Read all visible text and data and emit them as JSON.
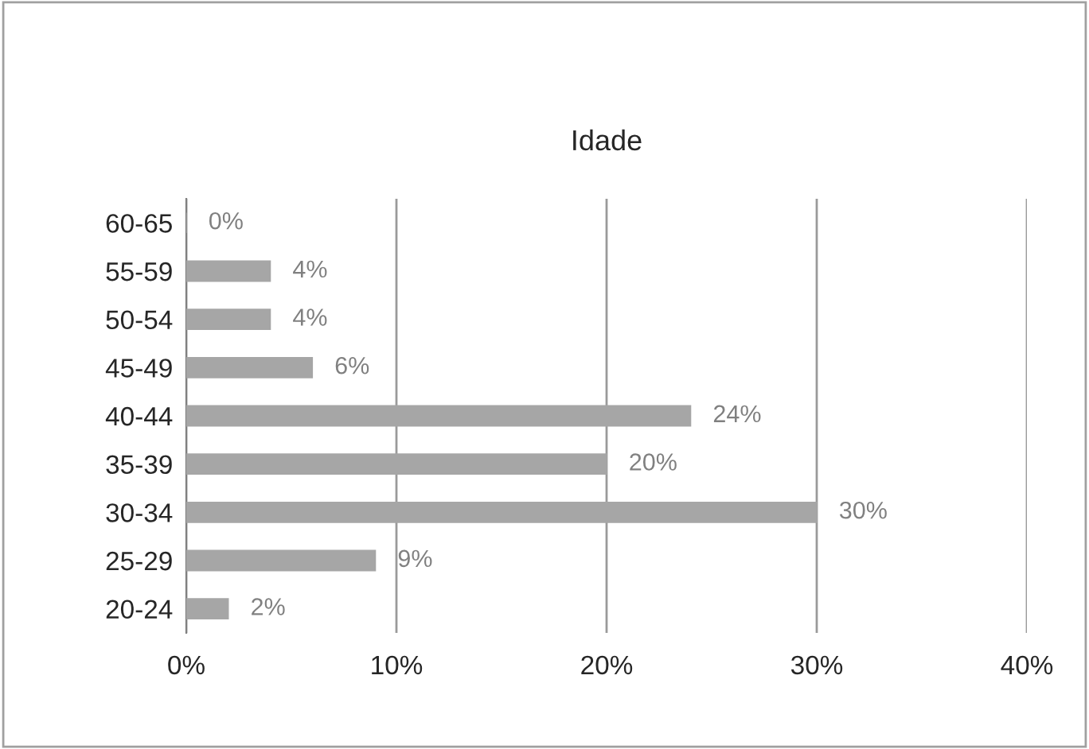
{
  "chart_data": {
    "type": "bar",
    "orientation": "horizontal",
    "title": "Idade",
    "categories": [
      "60-65",
      "55-59",
      "50-54",
      "45-49",
      "40-44",
      "35-39",
      "30-34",
      "25-29",
      "20-24"
    ],
    "values": [
      0,
      4,
      4,
      6,
      24,
      20,
      30,
      9,
      2
    ],
    "value_labels": [
      "0%",
      "4%",
      "4%",
      "6%",
      "24%",
      "20%",
      "30%",
      "9%",
      "2%"
    ],
    "color": "#a6a6a6",
    "xlim": [
      0,
      40
    ],
    "xticks": [
      {
        "value": 0,
        "label": "0%"
      },
      {
        "value": 10,
        "label": "10%"
      },
      {
        "value": 20,
        "label": "20%"
      },
      {
        "value": 30,
        "label": "30%"
      },
      {
        "value": 40,
        "label": "40%"
      }
    ],
    "grid": "x"
  }
}
